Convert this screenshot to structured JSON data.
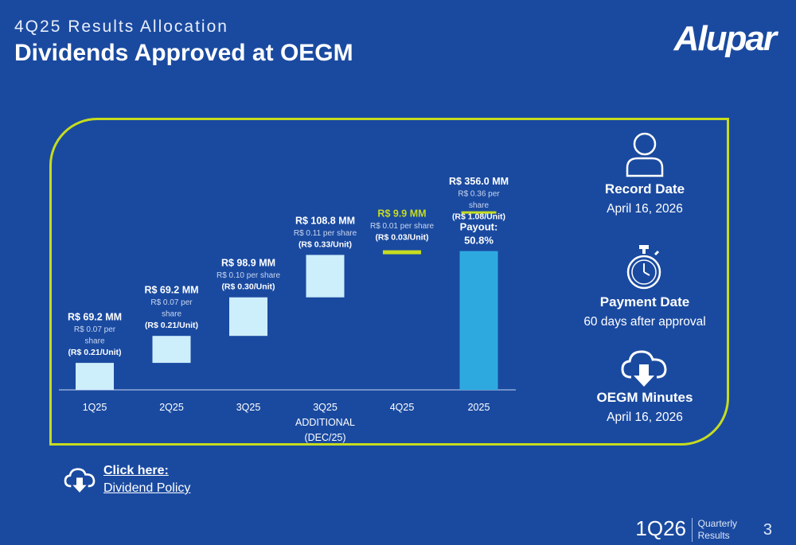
{
  "header": {
    "subtitle": "4Q25 Results Allocation",
    "title": "Dividends Approved at OEGM",
    "logo": "Alupar"
  },
  "chart_data": {
    "type": "bar",
    "subtype": "waterfall",
    "categories": [
      "1Q25",
      "2Q25",
      "3Q25",
      "3Q25 ADDITIONAL (DEC/25)",
      "4Q25",
      "2025"
    ],
    "category_lines": [
      [
        "1Q25"
      ],
      [
        "2Q25"
      ],
      [
        "3Q25"
      ],
      [
        "3Q25",
        "ADDITIONAL",
        "(DEC/25)"
      ],
      [
        "4Q25"
      ],
      [
        "2025"
      ]
    ],
    "values": [
      69.2,
      69.2,
      98.9,
      108.8,
      9.9,
      356.0
    ],
    "total_index": 5,
    "unit": "R$ MM",
    "bars": [
      {
        "amount": "R$ 69.2 MM",
        "per_share": [
          "R$ 0.07 per",
          "share"
        ],
        "unit_val": "R$ 0.21/Unit"
      },
      {
        "amount": "R$ 69.2 MM",
        "per_share": [
          "R$ 0.07 per",
          "share"
        ],
        "unit_val": "R$ 0.21/Unit"
      },
      {
        "amount": "R$ 98.9 MM",
        "per_share": [
          "R$ 0.10 per share"
        ],
        "unit_val": "R$ 0.30/Unit"
      },
      {
        "amount": "R$ 108.8 MM",
        "per_share": [
          "R$ 0.11 per share"
        ],
        "unit_val": "R$ 0.33/Unit"
      },
      {
        "amount": "R$ 9.9 MM",
        "per_share": [
          "R$ 0.01 per share"
        ],
        "unit_val": "R$ 0.03/Unit"
      },
      {
        "amount": "R$ 356.0 MM",
        "per_share": [
          "R$ 0.36 per",
          "share"
        ],
        "unit_val": "R$ 1.08/Unit"
      }
    ],
    "payout_label": "Payout:",
    "payout_value": "50.8%",
    "colors": {
      "step": "#cdeefb",
      "total": "#2ea9e0",
      "highlight": "#c6dc1f",
      "axis": "#c9d6f0"
    }
  },
  "side": {
    "record": {
      "label": "Record Date",
      "value": "April 16, 2026"
    },
    "payment": {
      "label": "Payment Date",
      "value": "60 days after approval"
    },
    "minutes": {
      "label": "OEGM Minutes",
      "value": "April 16, 2026"
    }
  },
  "link": {
    "line1": "Click here:",
    "line2": "Dividend Policy"
  },
  "footer": {
    "quarter": "1Q26",
    "label1": "Quarterly",
    "label2": "Results",
    "page": "3"
  }
}
